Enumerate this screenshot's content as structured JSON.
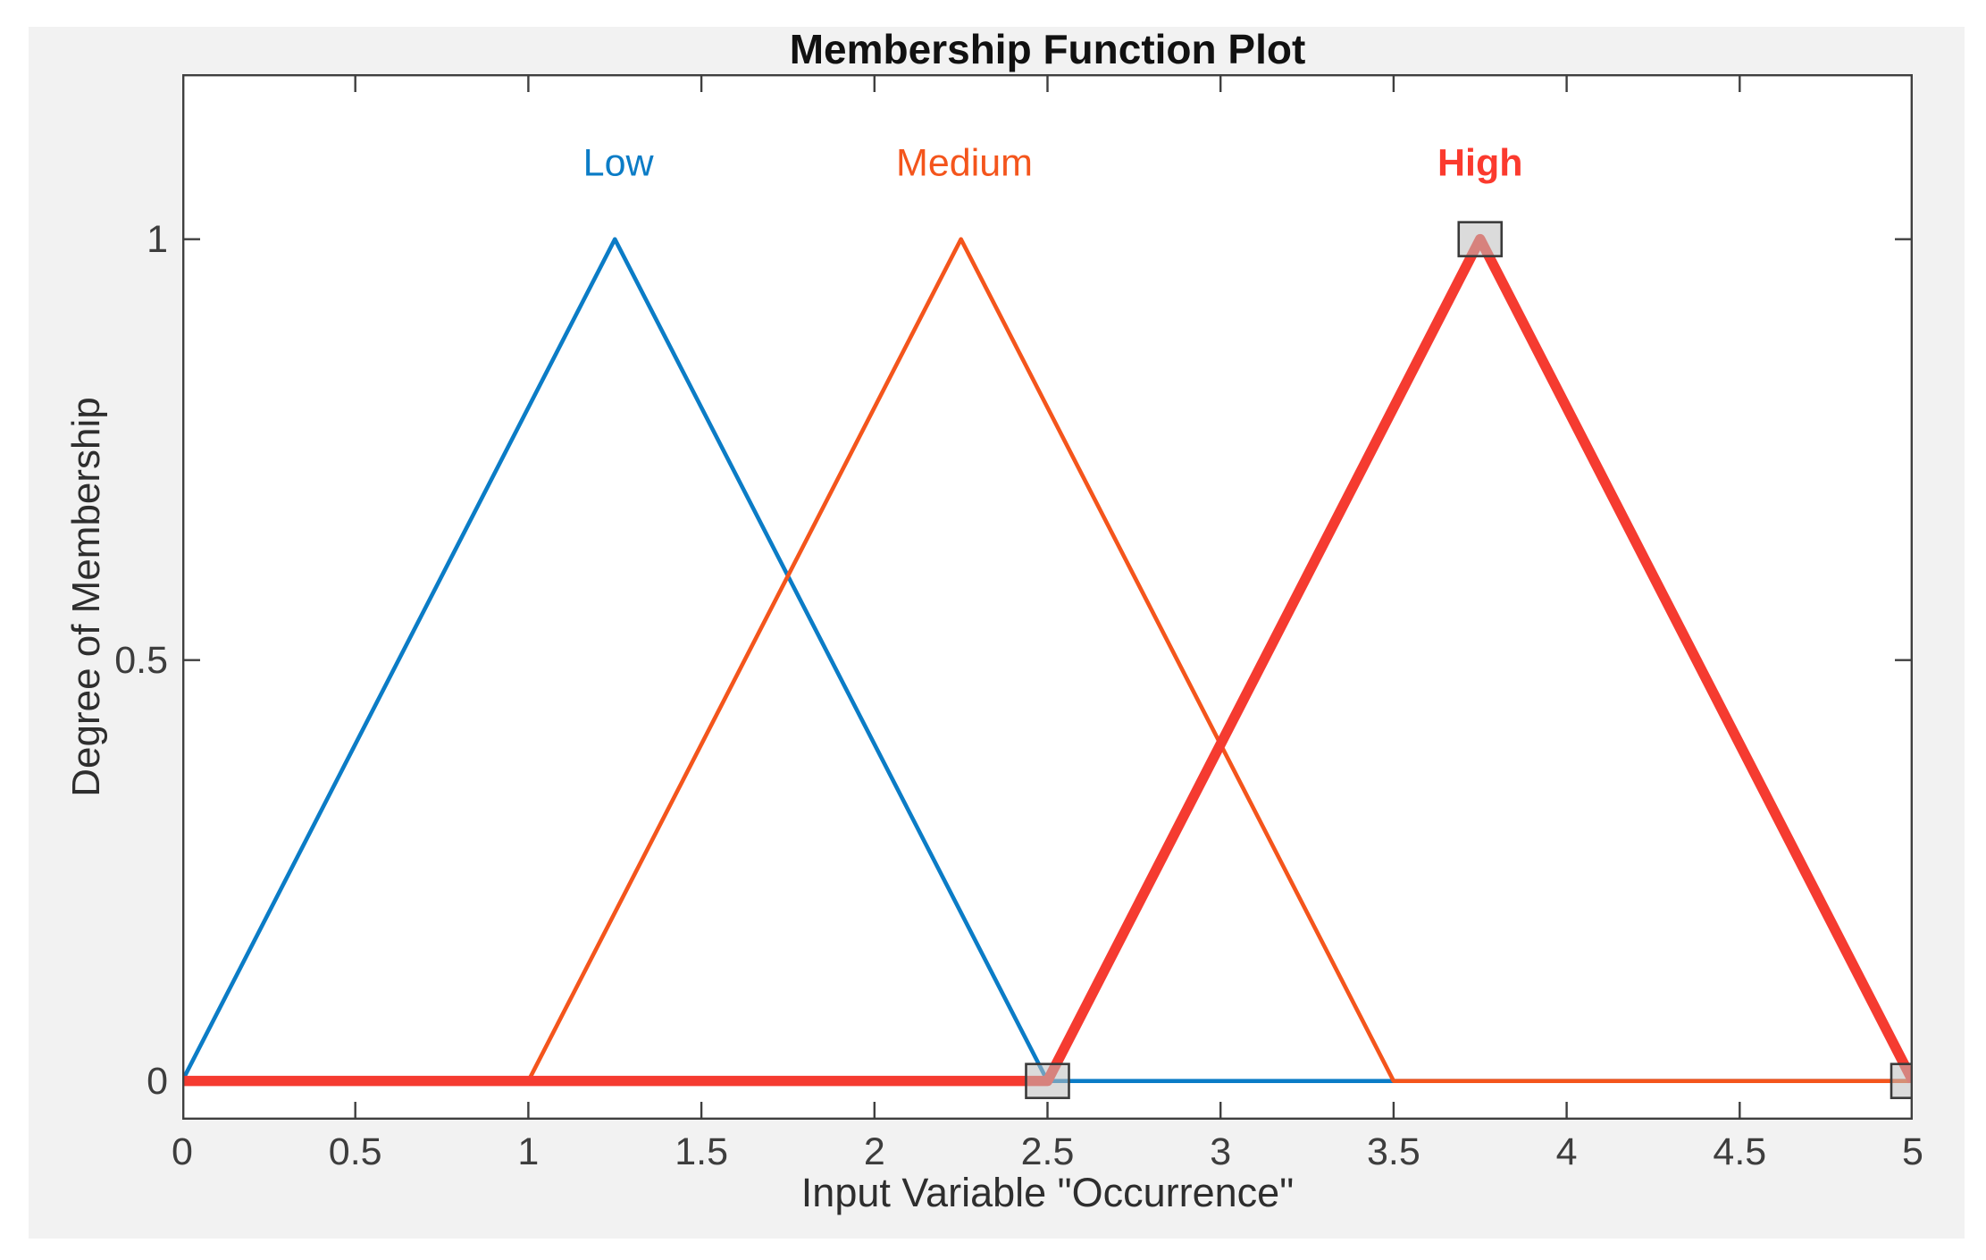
{
  "figure": {
    "title": "Membership Function Plot",
    "xlabel": "Input Variable \"Occurrence\"",
    "ylabel": "Degree of Membership",
    "background_color": "#f2f2f2",
    "axes_background_color": "#ffffff",
    "axes_border_color": "#3f3f3f",
    "tick_label_color": "#3d3d3d"
  },
  "chart_data": {
    "type": "line",
    "subtype": "fuzzy-membership-functions",
    "title": "Membership Function Plot",
    "xlabel": "Input Variable \"Occurrence\"",
    "ylabel": "Degree of Membership",
    "xlim": [
      0,
      5
    ],
    "ylim": [
      -0.046,
      1.196
    ],
    "x_tick_values": [
      0,
      0.5,
      1,
      1.5,
      2,
      2.5,
      3,
      3.5,
      4,
      4.5,
      5
    ],
    "x_ticks": [
      "0",
      "0.5",
      "1",
      "1.5",
      "2",
      "2.5",
      "3",
      "3.5",
      "4",
      "4.5",
      "5"
    ],
    "y_tick_values": [
      0,
      0.5,
      1
    ],
    "y_ticks": [
      "0",
      "0.5",
      "1"
    ],
    "grid": false,
    "legend_position": "none",
    "series": [
      {
        "name": "Low",
        "mf_type": "trimf",
        "params": [
          0,
          1.25,
          2.5
        ],
        "points": [
          [
            0,
            0
          ],
          [
            1.25,
            1
          ],
          [
            2.5,
            0
          ],
          [
            5,
            0
          ]
        ],
        "color": "#0b7cc6",
        "label_color": "#0b7cc6",
        "line_width": 4.6,
        "selected": false,
        "label": {
          "text": "Low",
          "x": 1.26,
          "y": 1.09,
          "bold": false
        }
      },
      {
        "name": "Medium",
        "mf_type": "trimf",
        "params": [
          1,
          2.25,
          3.5
        ],
        "points": [
          [
            0,
            0
          ],
          [
            1,
            0
          ],
          [
            2.25,
            1
          ],
          [
            3.5,
            0
          ],
          [
            5,
            0
          ]
        ],
        "color": "#f4551c",
        "label_color": "#f4551c",
        "line_width": 4.6,
        "selected": false,
        "label": {
          "text": "Medium",
          "x": 2.26,
          "y": 1.09,
          "bold": false
        }
      },
      {
        "name": "High",
        "mf_type": "trimf",
        "params": [
          2.5,
          3.75,
          5
        ],
        "points": [
          [
            0,
            0
          ],
          [
            2.5,
            0
          ],
          [
            3.75,
            1
          ],
          [
            5,
            0
          ]
        ],
        "color": "#f53b30",
        "label_color": "#fb3a2e",
        "line_width": 11.5,
        "selected": true,
        "label": {
          "text": "High",
          "x": 3.75,
          "y": 1.09,
          "bold": true
        },
        "handles": [
          [
            2.5,
            0
          ],
          [
            3.75,
            1
          ],
          [
            5,
            0
          ]
        ],
        "handle_style": {
          "fill": "#bebebe",
          "fill_opacity": 0.55,
          "stroke": "#3a3a3a",
          "stroke_width": 2.6,
          "width": 48,
          "height": 38
        }
      }
    ]
  }
}
